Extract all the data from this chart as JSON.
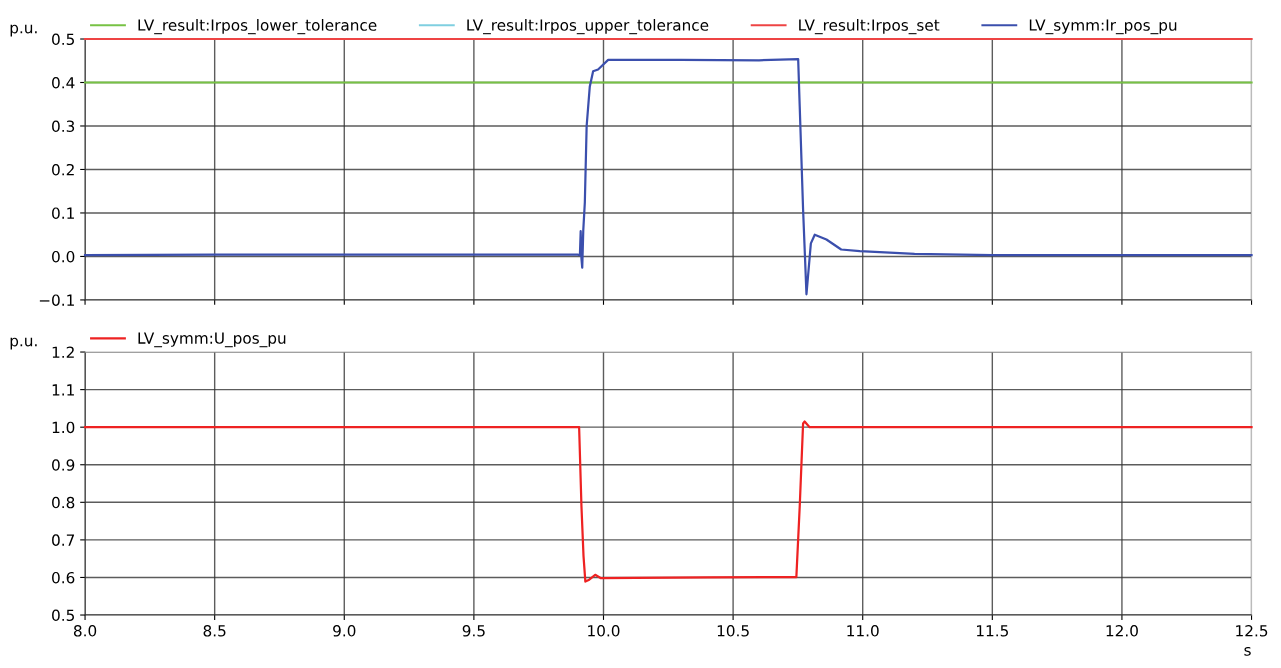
{
  "chart_data": [
    {
      "type": "line",
      "ylabel": "p.u.",
      "xlim": [
        8.0,
        12.5
      ],
      "ylim": [
        -0.1,
        0.5
      ],
      "xticks": [
        8.0,
        8.5,
        9.0,
        9.5,
        10.0,
        10.5,
        11.0,
        11.5,
        12.0,
        12.5
      ],
      "yticks": [
        {
          "value": -0.1,
          "label": "−0.1"
        },
        {
          "value": 0,
          "label": "0.0"
        },
        0.1,
        0.2,
        0.3,
        0.4,
        0.5
      ],
      "tick_labels": "y",
      "grid": true,
      "legend": "top",
      "marker": "none",
      "line_style": "solid",
      "series": [
        {
          "name": "LV_result:Irpos_lower_tolerance",
          "color": "#77c244",
          "x": [
            8.0,
            12.5
          ],
          "values": [
            0.4,
            0.4
          ]
        },
        {
          "name": "LV_result:Irpos_upper_tolerance",
          "color": "#7fcfe0"
        },
        {
          "name": "LV_result:Irpos_set",
          "color": "#ee4444",
          "x": [
            8.0,
            12.5
          ],
          "values": [
            0.5,
            0.5
          ]
        },
        {
          "name": "LV_symm:Ir_pos_pu",
          "color": "#3b4fad",
          "x": [
            8.0,
            8.5,
            9.0,
            9.5,
            9.9,
            9.909,
            9.912,
            9.915,
            9.918,
            9.922,
            9.928,
            9.935,
            9.947,
            9.96,
            9.979,
            10.018,
            10.3,
            10.6,
            10.751,
            10.757,
            10.77,
            10.783,
            10.8,
            10.815,
            10.86,
            10.917,
            10.989,
            11.2,
            11.5,
            12.0,
            12.5
          ],
          "values": [
            0.003,
            0.004,
            0.004,
            0.004,
            0.004,
            0.003,
            0.058,
            -0.005,
            -0.026,
            0.06,
            0.124,
            0.3,
            0.39,
            0.426,
            0.43,
            0.452,
            0.452,
            0.451,
            0.454,
            0.345,
            0.108,
            -0.087,
            0.03,
            0.05,
            0.039,
            0.016,
            0.012,
            0.006,
            0.003,
            0.003,
            0.003
          ]
        }
      ]
    },
    {
      "type": "line",
      "ylabel": "p.u.",
      "xlabel": "s",
      "xlim": [
        8.0,
        12.5
      ],
      "ylim": [
        0.5,
        1.2
      ],
      "xticks": [
        {
          "value": 8,
          "label": "8.0"
        },
        8.5,
        {
          "value": 9,
          "label": "9.0"
        },
        9.5,
        {
          "value": 10,
          "label": "10.0"
        },
        10.5,
        {
          "value": 11,
          "label": "11.0"
        },
        11.5,
        {
          "value": 12,
          "label": "12.0"
        },
        12.5
      ],
      "yticks": [
        0.5,
        0.6,
        0.7,
        0.8,
        0.9,
        {
          "value": 1,
          "label": "1.0"
        },
        1.1,
        1.2
      ],
      "grid": true,
      "legend": "top",
      "marker": "none",
      "line_style": "solid",
      "series": [
        {
          "name": "LV_symm:U_pos_pu",
          "color": "#ee2222",
          "x": [
            8.0,
            9.0,
            9.906,
            9.915,
            9.923,
            9.93,
            9.945,
            9.968,
            9.99,
            10.4,
            10.744,
            10.757,
            10.77,
            10.776,
            10.795,
            10.83,
            11.5,
            12.5
          ],
          "values": [
            1.0,
            1.0,
            1.0,
            0.789,
            0.656,
            0.589,
            0.594,
            0.607,
            0.598,
            0.6,
            0.601,
            0.789,
            1.01,
            1.015,
            1.0,
            1.0,
            1.0,
            1.0
          ]
        }
      ]
    }
  ]
}
